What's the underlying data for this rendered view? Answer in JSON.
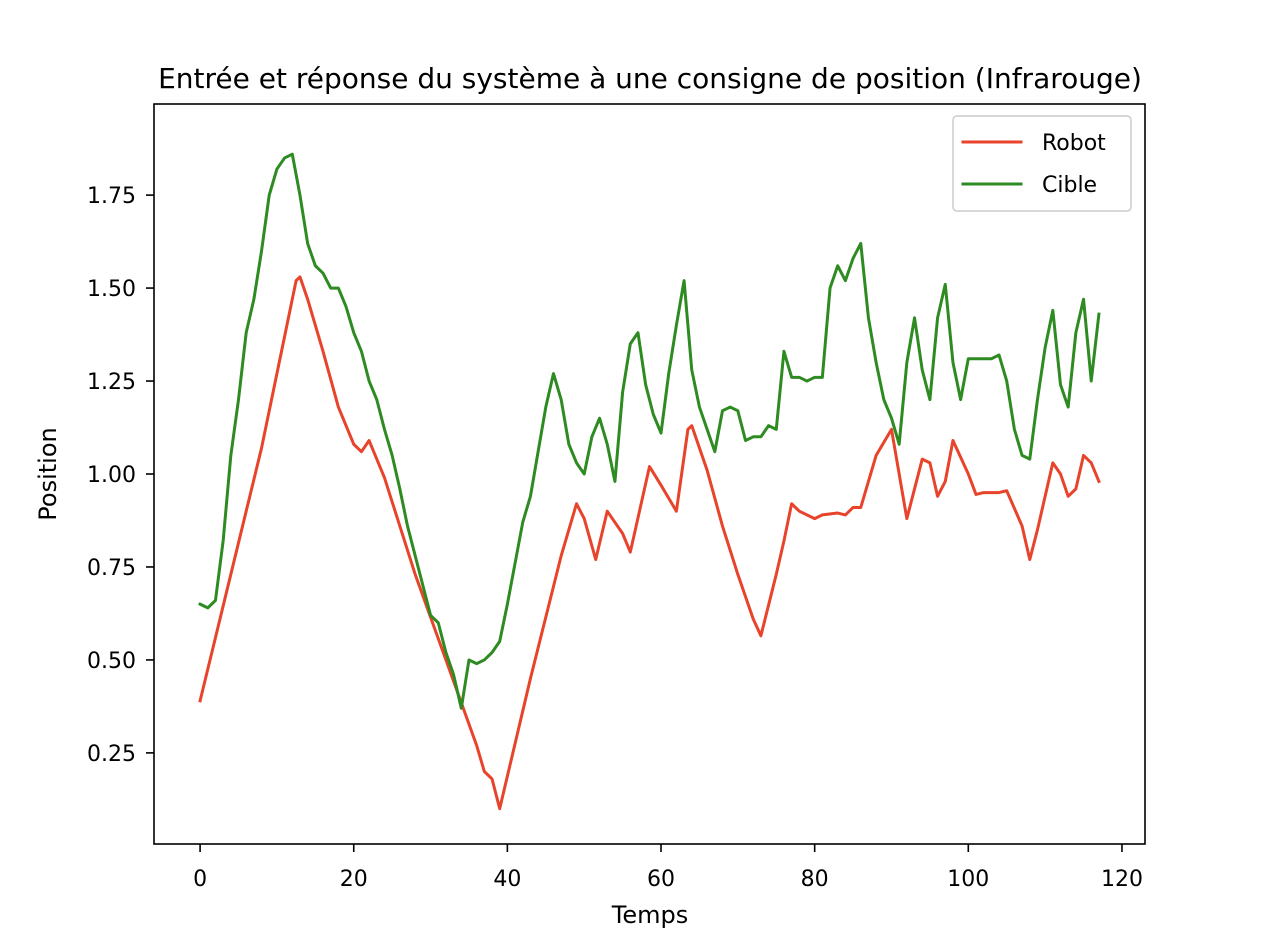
{
  "chart_data": {
    "type": "line",
    "title": "Entrée et réponse du système à une consigne de position (Infrarouge)",
    "xlabel": "Temps",
    "ylabel": "Position",
    "xlim": [
      -6,
      123
    ],
    "ylim": [
      0.005,
      1.995
    ],
    "xticks": [
      0,
      20,
      40,
      60,
      80,
      100,
      120
    ],
    "yticks": [
      0.25,
      0.5,
      0.75,
      1.0,
      1.25,
      1.5,
      1.75
    ],
    "xtick_labels": [
      "0",
      "20",
      "40",
      "60",
      "80",
      "100",
      "120"
    ],
    "ytick_labels": [
      "0.25",
      "0.50",
      "0.75",
      "1.00",
      "1.25",
      "1.50",
      "1.75"
    ],
    "grid": false,
    "legend": {
      "position": "top-right"
    },
    "series": [
      {
        "name": "Robot",
        "color": "#e8432b",
        "x": [
          0,
          4,
          8,
          11,
          12.5,
          13,
          14,
          16,
          18,
          20,
          21,
          22,
          24,
          28,
          32,
          36,
          37,
          38,
          39,
          43,
          47,
          49,
          50,
          51.5,
          53,
          55,
          56,
          58.5,
          60,
          62,
          63.5,
          64,
          66,
          68,
          70,
          72,
          73,
          75,
          76,
          77,
          78,
          80,
          81,
          83,
          84,
          85,
          86,
          88,
          90,
          92,
          94,
          95,
          96,
          97,
          98,
          100,
          101,
          102,
          103,
          104,
          105,
          107,
          108,
          109,
          111,
          112,
          113,
          114,
          115,
          116,
          117
        ],
        "y": [
          0.39,
          0.73,
          1.07,
          1.37,
          1.52,
          1.53,
          1.47,
          1.33,
          1.18,
          1.08,
          1.06,
          1.09,
          0.99,
          0.73,
          0.5,
          0.27,
          0.2,
          0.18,
          0.1,
          0.45,
          0.78,
          0.92,
          0.88,
          0.77,
          0.9,
          0.84,
          0.79,
          1.02,
          0.97,
          0.9,
          1.12,
          1.13,
          1.01,
          0.86,
          0.73,
          0.61,
          0.565,
          0.73,
          0.82,
          0.92,
          0.9,
          0.88,
          0.89,
          0.895,
          0.89,
          0.91,
          0.91,
          1.05,
          1.12,
          0.88,
          1.04,
          1.03,
          0.94,
          0.98,
          1.09,
          1.0,
          0.945,
          0.95,
          0.95,
          0.95,
          0.955,
          0.86,
          0.77,
          0.85,
          1.03,
          1.0,
          0.94,
          0.96,
          1.05,
          1.03,
          0.98
        ]
      },
      {
        "name": "Cible",
        "color": "#2e8b22",
        "x": [
          0,
          1,
          2,
          3,
          4,
          5,
          6,
          7,
          8,
          9,
          10,
          11,
          12,
          13,
          14,
          15,
          16,
          17,
          18,
          19,
          20,
          21,
          22,
          23,
          24,
          25,
          26,
          27,
          28,
          29,
          30,
          31,
          32,
          33,
          34,
          35,
          36,
          37,
          38,
          39,
          40,
          41,
          42,
          43,
          44,
          45,
          46,
          47,
          48,
          49,
          50,
          51,
          52,
          53,
          54,
          55,
          56,
          57,
          58,
          59,
          60,
          61,
          62,
          63,
          64,
          65,
          66,
          67,
          68,
          69,
          70,
          71,
          72,
          73,
          74,
          75,
          76,
          77,
          78,
          79,
          80,
          81,
          82,
          83,
          84,
          85,
          86,
          87,
          88,
          89,
          90,
          91,
          92,
          93,
          94,
          95,
          96,
          97,
          98,
          99,
          100,
          101,
          102,
          103,
          104,
          105,
          106,
          107,
          108,
          109,
          110,
          111,
          112,
          113,
          114,
          115,
          116,
          117
        ],
        "y": [
          0.65,
          0.64,
          0.66,
          0.82,
          1.05,
          1.2,
          1.38,
          1.47,
          1.6,
          1.75,
          1.82,
          1.85,
          1.86,
          1.75,
          1.62,
          1.56,
          1.54,
          1.5,
          1.5,
          1.45,
          1.38,
          1.33,
          1.25,
          1.2,
          1.12,
          1.05,
          0.96,
          0.86,
          0.78,
          0.7,
          0.62,
          0.6,
          0.52,
          0.46,
          0.37,
          0.5,
          0.49,
          0.5,
          0.52,
          0.55,
          0.65,
          0.76,
          0.87,
          0.94,
          1.06,
          1.18,
          1.27,
          1.2,
          1.08,
          1.03,
          1.0,
          1.1,
          1.15,
          1.08,
          0.98,
          1.22,
          1.35,
          1.38,
          1.24,
          1.16,
          1.11,
          1.27,
          1.4,
          1.52,
          1.28,
          1.18,
          1.12,
          1.06,
          1.17,
          1.18,
          1.17,
          1.09,
          1.1,
          1.1,
          1.13,
          1.12,
          1.33,
          1.26,
          1.26,
          1.25,
          1.26,
          1.26,
          1.5,
          1.56,
          1.52,
          1.58,
          1.62,
          1.42,
          1.3,
          1.2,
          1.15,
          1.08,
          1.3,
          1.42,
          1.28,
          1.2,
          1.42,
          1.51,
          1.3,
          1.2,
          1.31,
          1.31,
          1.31,
          1.31,
          1.32,
          1.25,
          1.12,
          1.05,
          1.04,
          1.2,
          1.34,
          1.44,
          1.24,
          1.18,
          1.38,
          1.47,
          1.25,
          1.43
        ]
      }
    ]
  }
}
